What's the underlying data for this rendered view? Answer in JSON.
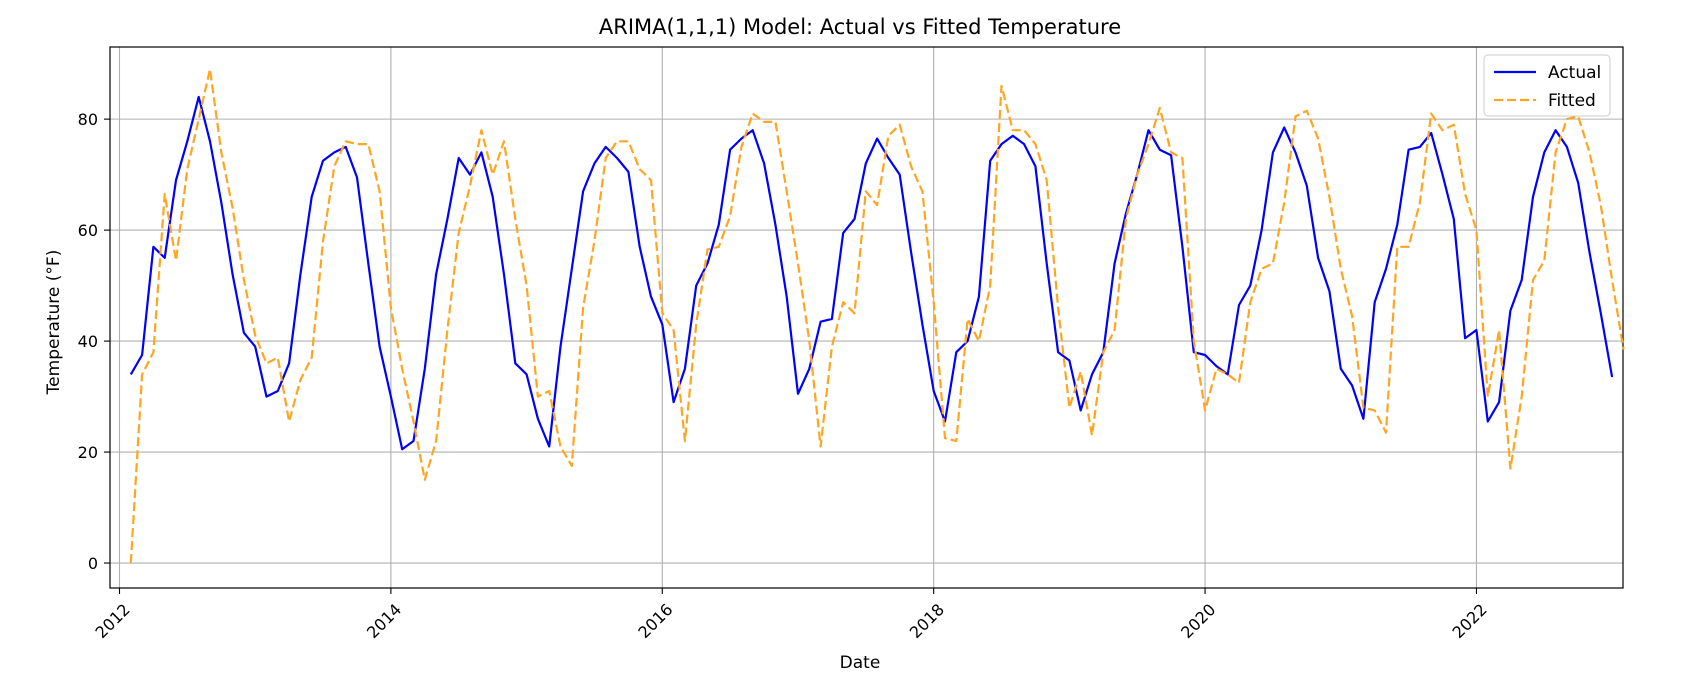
{
  "chart_data": {
    "type": "line",
    "title": "ARIMA(1,1,1) Model: Actual vs Fitted Temperature",
    "xlabel": "Date",
    "ylabel": "Temperature (°F)",
    "x_start": "2012-01",
    "x_frequency": "monthly",
    "xlim": [
      2011.93,
      2023.08
    ],
    "ylim": [
      -4.5,
      93
    ],
    "x_ticks": [
      2012,
      2014,
      2016,
      2018,
      2020,
      2022
    ],
    "x_tick_labels": [
      "2012",
      "2014",
      "2016",
      "2018",
      "2020",
      "2022"
    ],
    "y_ticks": [
      0,
      20,
      40,
      60,
      80
    ],
    "y_tick_labels": [
      "0",
      "20",
      "40",
      "60",
      "80"
    ],
    "grid": true,
    "legend_position": "top-right",
    "series": [
      {
        "name": "Actual",
        "color": "#0000ff",
        "dash": "solid",
        "values": [
          34,
          37.5,
          57,
          55,
          69,
          76,
          84,
          76,
          65,
          52,
          41.5,
          39,
          30,
          31,
          36,
          52,
          66,
          72.5,
          74,
          75,
          69.5,
          54,
          39,
          30,
          20.5,
          22,
          35,
          52,
          62,
          73,
          70,
          74,
          66,
          52,
          36,
          34,
          26,
          21,
          39,
          53,
          67,
          72,
          75,
          73,
          70.5,
          57,
          48,
          43,
          29,
          35,
          50,
          54,
          61,
          74.5,
          76.5,
          78,
          72,
          61,
          48,
          30.5,
          35,
          43.5,
          44,
          59.5,
          62,
          72,
          76.5,
          73,
          70,
          56,
          43,
          31,
          25.5,
          38,
          40,
          48,
          72.5,
          75.5,
          77,
          75.5,
          71.5,
          54,
          38,
          36.5,
          27.5,
          34,
          38,
          54,
          63,
          70,
          78,
          74.5,
          73.5,
          57,
          38,
          37.5,
          35.5,
          34,
          46.5,
          50,
          60,
          74,
          78.5,
          74,
          68,
          55,
          49,
          35,
          32,
          26,
          47,
          53,
          61,
          74.5,
          75,
          77.5,
          70,
          62,
          40.5,
          42,
          25.5,
          29,
          45.5,
          51,
          66,
          74,
          78,
          75,
          68.5,
          56,
          45,
          33.5
        ]
      },
      {
        "name": "Fitted",
        "color": "#ffa520",
        "dash": "dashed",
        "values": [
          0,
          34,
          38,
          66.5,
          54.5,
          71,
          80,
          89,
          74,
          64,
          51,
          41,
          36,
          37,
          25.5,
          33,
          37,
          58,
          71.5,
          76,
          75.5,
          75.5,
          67,
          46,
          35,
          25.5,
          15,
          22,
          42,
          59.5,
          68,
          78,
          70,
          76,
          62,
          50,
          30,
          31,
          21,
          17.5,
          46,
          58,
          73,
          76,
          76,
          71,
          69,
          45,
          42,
          22,
          43,
          56.5,
          57,
          62.5,
          75,
          81,
          79.5,
          79.5,
          67,
          54,
          40,
          21,
          39,
          47,
          45,
          67,
          64.5,
          77,
          79,
          71.5,
          67,
          47,
          22.5,
          22,
          44,
          40,
          50,
          86,
          78,
          78,
          75.5,
          69,
          46,
          28,
          34.5,
          23,
          38,
          42,
          62,
          70,
          75.5,
          82,
          74,
          73,
          40,
          27.5,
          35,
          34,
          32.5,
          47,
          53,
          54,
          65,
          80.5,
          81.5,
          76.5,
          66,
          53,
          44.5,
          28,
          27.5,
          23.5,
          57,
          57,
          65,
          81,
          78,
          79,
          66.5,
          60,
          30,
          42,
          17,
          30,
          51,
          54.5,
          74,
          80,
          80.5,
          74,
          64.5,
          51,
          38.5
        ]
      }
    ]
  }
}
